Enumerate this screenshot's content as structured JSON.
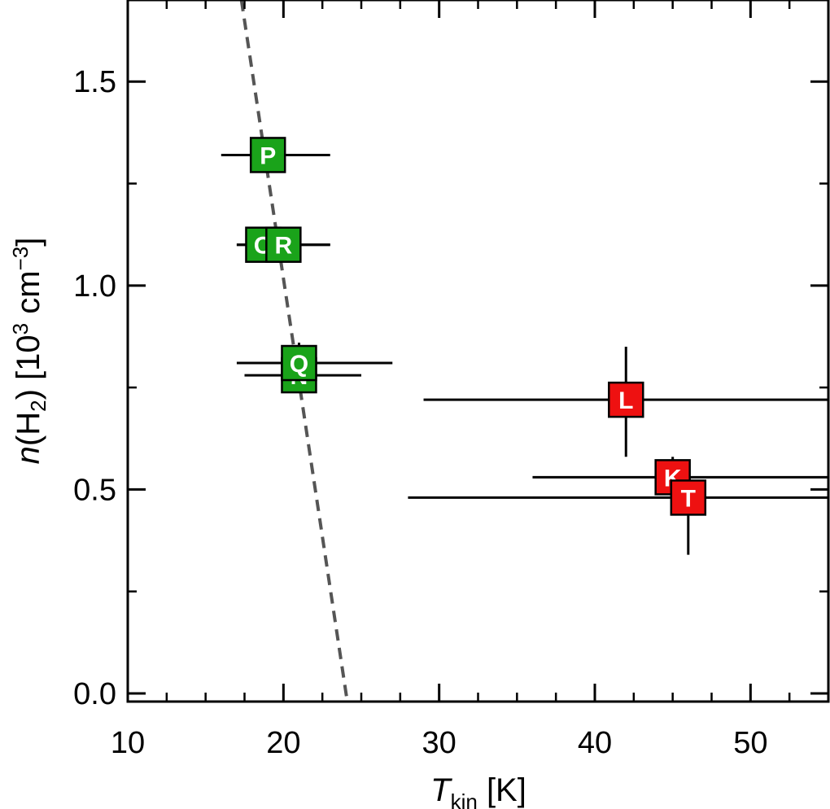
{
  "chart_data": {
    "type": "scatter",
    "xlabel": {
      "main": "T",
      "sub": "kin",
      "rest": " [K]"
    },
    "ylabel": {
      "pre": "n",
      "mid": "(H",
      "sub": "2",
      "post": ") [10",
      "sup1": "3",
      "post2": " cm",
      "sup2": "−3",
      "end": "]"
    },
    "xlim": [
      10,
      55
    ],
    "ylim": [
      -0.02,
      1.7
    ],
    "xticks": [
      10,
      20,
      30,
      40,
      50
    ],
    "xtick_labels": [
      "10",
      "20",
      "30",
      "40",
      "50"
    ],
    "yticks": [
      0.0,
      0.5,
      1.0,
      1.5
    ],
    "ytick_labels": [
      "0.0",
      "0.5",
      "1.0",
      "1.5"
    ],
    "x_minor_step": 2.5,
    "y_minor_step": 0.25,
    "colors": {
      "green": "#1aa31a",
      "red": "#ee1111",
      "trend": "#555555"
    },
    "trend_line": {
      "style": "dashed",
      "points": [
        [
          17.3,
          1.7
        ],
        [
          24.1,
          -0.02
        ]
      ]
    },
    "points": [
      {
        "label": "P",
        "x": 19.0,
        "y": 1.32,
        "xerr_low": 16.0,
        "xerr_high": 23.0,
        "color": "green"
      },
      {
        "label": "O",
        "x": 18.7,
        "y": 1.1,
        "xerr_low": 17.0,
        "xerr_high": 23.0,
        "color": "green"
      },
      {
        "label": "R",
        "x": 20.0,
        "y": 1.1,
        "xerr_low": 17.0,
        "xerr_high": 23.0,
        "color": "green"
      },
      {
        "label": "N",
        "x": 21.0,
        "y": 0.78,
        "xerr_low": 17.5,
        "xerr_high": 25.0,
        "color": "green"
      },
      {
        "label": "Q",
        "x": 21.0,
        "y": 0.81,
        "xerr_low": 17.0,
        "xerr_high": 27.0,
        "yerr_low": 0.78,
        "yerr_high": 0.86,
        "color": "green"
      },
      {
        "label": "L",
        "x": 42.0,
        "y": 0.72,
        "xerr_low": 29.0,
        "xerr_high": 55.0,
        "yerr_low": 0.58,
        "yerr_high": 0.85,
        "color": "red"
      },
      {
        "label": "K",
        "x": 45.0,
        "y": 0.53,
        "xerr_low": 36.0,
        "xerr_high": 55.0,
        "yerr_low": 0.5,
        "yerr_high": 0.58,
        "color": "red"
      },
      {
        "label": "T",
        "x": 46.0,
        "y": 0.48,
        "xerr_low": 28.0,
        "xerr_high": 55.0,
        "yerr_low": 0.34,
        "yerr_high": 0.5,
        "color": "red"
      }
    ]
  }
}
